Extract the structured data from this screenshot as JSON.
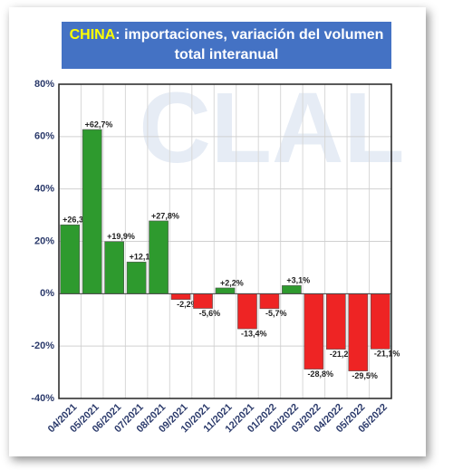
{
  "chart_data": {
    "type": "bar",
    "title": {
      "highlight": "CHINA",
      "rest": ": importaciones, variación del volumen total interanual"
    },
    "watermark": "CLAL",
    "categories": [
      "04/2021",
      "05/2021",
      "06/2021",
      "07/2021",
      "08/2021",
      "09/2021",
      "10/2021",
      "11/2021",
      "12/2021",
      "01/2022",
      "02/2022",
      "03/2022",
      "04/2022",
      "05/2022",
      "06/2022"
    ],
    "values": [
      26.3,
      62.7,
      19.9,
      12.1,
      27.8,
      -2.2,
      -5.6,
      2.2,
      -13.4,
      -5.7,
      3.1,
      -28.8,
      -21.2,
      -29.5,
      -21.1
    ],
    "value_labels": [
      "+26,3%",
      "+62,7%",
      "+19,9%",
      "+12,1%",
      "+27,8%",
      "-2,2%",
      "-5,6%",
      "+2,2%",
      "-13,4%",
      "-5,7%",
      "+3,1%",
      "-28,8%",
      "-21,2%",
      "-29,5%",
      "-21,1%"
    ],
    "colors": [
      "#2e9a2e",
      "#2e9a2e",
      "#2e9a2e",
      "#2e9a2e",
      "#2e9a2e",
      "#ee2424",
      "#ee2424",
      "#2e9a2e",
      "#ee2424",
      "#ee2424",
      "#2e9a2e",
      "#ee2424",
      "#ee2424",
      "#ee2424",
      "#ee2424"
    ],
    "ylim": [
      -40,
      80
    ],
    "yticks": [
      {
        "value": -40,
        "label": "-40%"
      },
      {
        "value": -20,
        "label": "-20%"
      },
      {
        "value": 0,
        "label": "0%"
      },
      {
        "value": 20,
        "label": "20%"
      },
      {
        "value": 40,
        "label": "40%"
      },
      {
        "value": 60,
        "label": "60%"
      },
      {
        "value": 80,
        "label": "80%"
      }
    ],
    "grid": true
  }
}
